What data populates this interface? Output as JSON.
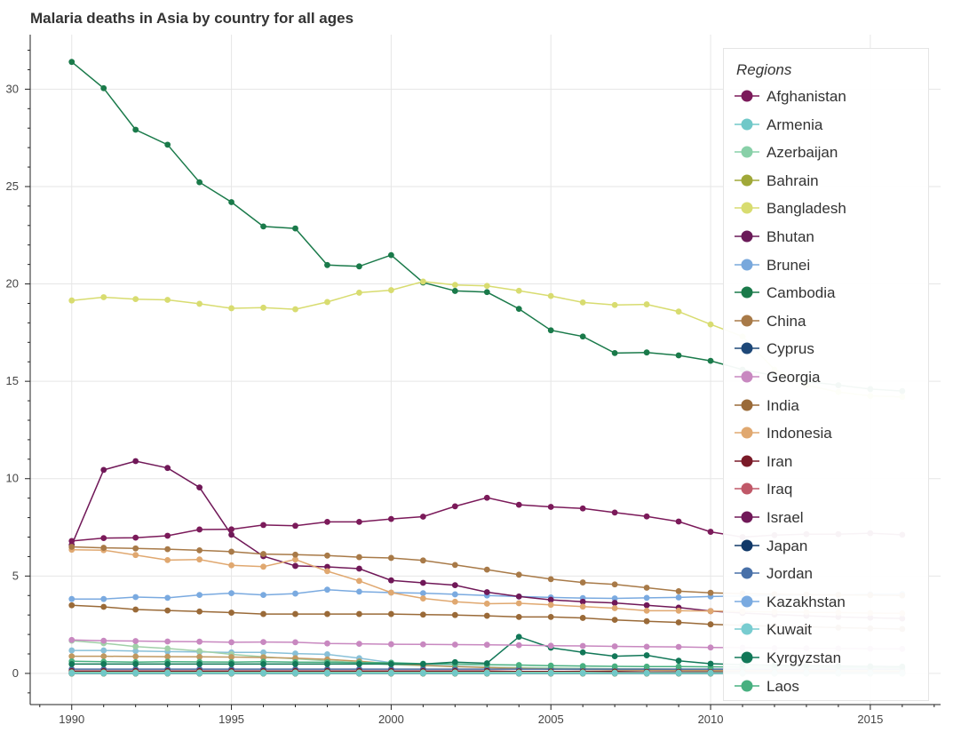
{
  "chart_data": {
    "type": "line",
    "title": "Malaria deaths in Asia by country for all ages",
    "xlabel": "",
    "ylabel": "",
    "xlim": [
      1988.7,
      2017.2
    ],
    "ylim": [
      -1.6,
      32.8
    ],
    "x_ticks": [
      1990,
      1995,
      2000,
      2005,
      2010,
      2015
    ],
    "y_ticks": [
      0,
      5,
      10,
      15,
      20,
      25,
      30
    ],
    "grid": true,
    "legend_title": "Regions",
    "legend_position": "right",
    "x": [
      1990,
      1991,
      1992,
      1993,
      1994,
      1995,
      1996,
      1997,
      1998,
      1999,
      2000,
      2001,
      2002,
      2003,
      2004,
      2005,
      2006,
      2007,
      2008,
      2009,
      2010,
      2011,
      2012,
      2013,
      2014,
      2015,
      2016
    ],
    "series": [
      {
        "name": "Afghanistan",
        "color": "#7b1a5a",
        "values": [
          6.8,
          6.95,
          6.97,
          7.07,
          7.39,
          7.4,
          7.62,
          7.58,
          7.78,
          7.78,
          7.93,
          8.05,
          8.58,
          9.02,
          8.66,
          8.55,
          8.47,
          8.26,
          8.06,
          7.8,
          7.27,
          7.0,
          7.1,
          7.15,
          7.15,
          7.2,
          7.12
        ]
      },
      {
        "name": "Armenia",
        "color": "#70c8c8",
        "values": [
          0.01,
          0.01,
          0.01,
          0.01,
          0.01,
          0.01,
          0.01,
          0.01,
          0.01,
          0.01,
          0.01,
          0.01,
          0.01,
          0.01,
          0.01,
          0.01,
          0.01,
          0.01,
          0.01,
          0.01,
          0.01,
          0.01,
          0.01,
          0.01,
          0.01,
          0.01,
          0.01
        ]
      },
      {
        "name": "Azerbaijan",
        "color": "#88d0a8",
        "values": [
          0.05,
          0.05,
          0.05,
          0.05,
          0.05,
          0.05,
          0.05,
          0.05,
          0.05,
          0.05,
          0.05,
          0.05,
          0.05,
          0.05,
          0.05,
          0.05,
          0.05,
          0.04,
          0.04,
          0.04,
          0.04,
          0.04,
          0.04,
          0.04,
          0.04,
          0.04,
          0.04
        ]
      },
      {
        "name": "Bahrain",
        "color": "#a0a838",
        "values": [
          0.0,
          0.0,
          0.0,
          0.0,
          0.0,
          0.0,
          0.0,
          0.0,
          0.0,
          0.0,
          0.0,
          0.0,
          0.0,
          0.0,
          0.0,
          0.0,
          0.0,
          0.0,
          0.0,
          0.0,
          0.0,
          0.0,
          0.0,
          0.0,
          0.0,
          0.0,
          0.0
        ]
      },
      {
        "name": "Bangladesh",
        "color": "#d8dc70",
        "values": [
          19.15,
          19.32,
          19.22,
          19.18,
          18.98,
          18.75,
          18.78,
          18.7,
          19.07,
          19.55,
          19.68,
          20.12,
          19.95,
          19.9,
          19.65,
          19.38,
          19.05,
          18.92,
          18.95,
          18.58,
          17.92,
          17.3,
          15.6,
          14.8,
          14.45,
          14.25,
          14.2
        ]
      },
      {
        "name": "Bhutan",
        "color": "#6a1a58",
        "values": [
          0.02,
          0.02,
          0.02,
          0.02,
          0.02,
          0.02,
          0.02,
          0.02,
          0.02,
          0.02,
          0.02,
          0.02,
          0.02,
          0.02,
          0.02,
          0.02,
          0.02,
          0.02,
          0.02,
          0.02,
          0.02,
          0.02,
          0.02,
          0.02,
          0.02,
          0.02,
          0.02
        ]
      },
      {
        "name": "Brunei",
        "color": "#78a8dc",
        "values": [
          0.0,
          0.0,
          0.0,
          0.0,
          0.0,
          0.0,
          0.0,
          0.0,
          0.0,
          0.0,
          0.0,
          0.0,
          0.0,
          0.0,
          0.0,
          0.0,
          0.0,
          0.0,
          0.0,
          0.0,
          0.0,
          0.0,
          0.0,
          0.0,
          0.0,
          0.0,
          0.0
        ]
      },
      {
        "name": "Cambodia",
        "color": "#1a7a4a",
        "values": [
          31.4,
          30.05,
          27.92,
          27.15,
          25.22,
          24.2,
          22.95,
          22.85,
          20.97,
          20.9,
          21.48,
          20.07,
          19.64,
          19.58,
          18.72,
          17.62,
          17.3,
          16.45,
          16.48,
          16.33,
          16.05,
          15.6,
          15.3,
          15.0,
          14.8,
          14.6,
          14.5
        ]
      },
      {
        "name": "China",
        "color": "#a87a48",
        "values": [
          6.5,
          6.45,
          6.42,
          6.38,
          6.32,
          6.25,
          6.13,
          6.1,
          6.05,
          5.97,
          5.93,
          5.8,
          5.57,
          5.33,
          5.07,
          4.84,
          4.67,
          4.57,
          4.4,
          4.22,
          4.14,
          4.1,
          4.07,
          4.05,
          4.03,
          4.02,
          4.0
        ]
      },
      {
        "name": "Cyprus",
        "color": "#1e4878",
        "values": [
          0.0,
          0.0,
          0.0,
          0.0,
          0.0,
          0.0,
          0.0,
          0.0,
          0.0,
          0.0,
          0.0,
          0.0,
          0.0,
          0.0,
          0.0,
          0.0,
          0.0,
          0.0,
          0.0,
          0.0,
          0.0,
          0.0,
          0.0,
          0.0,
          0.0,
          0.0,
          0.0
        ]
      },
      {
        "name": "Georgia",
        "color": "#c888c0",
        "values": [
          1.72,
          1.68,
          1.66,
          1.64,
          1.63,
          1.6,
          1.61,
          1.6,
          1.54,
          1.52,
          1.5,
          1.49,
          1.48,
          1.47,
          1.45,
          1.42,
          1.41,
          1.39,
          1.37,
          1.36,
          1.33,
          1.32,
          1.3,
          1.29,
          1.28,
          1.27,
          1.26
        ]
      },
      {
        "name": "India",
        "color": "#9a6a38",
        "values": [
          3.5,
          3.42,
          3.28,
          3.23,
          3.18,
          3.12,
          3.05,
          3.05,
          3.05,
          3.05,
          3.05,
          3.02,
          3.0,
          2.96,
          2.9,
          2.9,
          2.85,
          2.75,
          2.68,
          2.62,
          2.52,
          2.47,
          2.43,
          2.39,
          2.35,
          2.31,
          2.28
        ]
      },
      {
        "name": "Indonesia",
        "color": "#e0a870",
        "values": [
          6.35,
          6.33,
          6.08,
          5.82,
          5.85,
          5.55,
          5.48,
          5.85,
          5.25,
          4.75,
          4.15,
          3.85,
          3.68,
          3.58,
          3.6,
          3.52,
          3.43,
          3.35,
          3.22,
          3.22,
          3.2,
          3.18,
          3.16,
          3.14,
          3.12,
          3.1,
          3.08
        ]
      },
      {
        "name": "Iran",
        "color": "#7a1a28",
        "values": [
          0.12,
          0.12,
          0.12,
          0.12,
          0.12,
          0.12,
          0.12,
          0.12,
          0.12,
          0.12,
          0.12,
          0.12,
          0.12,
          0.12,
          0.1,
          0.1,
          0.1,
          0.1,
          0.08,
          0.08,
          0.07,
          0.07,
          0.06,
          0.06,
          0.05,
          0.05,
          0.05
        ]
      },
      {
        "name": "Iraq",
        "color": "#c05868",
        "values": [
          0.08,
          0.08,
          0.08,
          0.08,
          0.08,
          0.08,
          0.08,
          0.08,
          0.08,
          0.08,
          0.08,
          0.08,
          0.08,
          0.08,
          0.07,
          0.07,
          0.07,
          0.07,
          0.06,
          0.06,
          0.06,
          0.05,
          0.05,
          0.05,
          0.05,
          0.05,
          0.05
        ]
      },
      {
        "name": "Israel",
        "color": "#701858",
        "values": [
          6.6,
          10.45,
          10.9,
          10.55,
          9.55,
          7.12,
          6.02,
          5.52,
          5.47,
          5.38,
          4.78,
          4.65,
          4.53,
          4.17,
          3.95,
          3.78,
          3.68,
          3.62,
          3.5,
          3.38,
          3.2,
          3.1,
          3.02,
          2.96,
          2.9,
          2.86,
          2.82
        ]
      },
      {
        "name": "Japan",
        "color": "#103868",
        "values": [
          0.0,
          0.0,
          0.0,
          0.0,
          0.0,
          0.0,
          0.0,
          0.0,
          0.0,
          0.0,
          0.0,
          0.0,
          0.0,
          0.0,
          0.0,
          0.0,
          0.0,
          0.0,
          0.0,
          0.0,
          0.0,
          0.0,
          0.0,
          0.0,
          0.0,
          0.0,
          0.0
        ]
      },
      {
        "name": "Jordan",
        "color": "#4870a8",
        "values": [
          0.0,
          0.0,
          0.0,
          0.0,
          0.0,
          0.0,
          0.0,
          0.0,
          0.0,
          0.0,
          0.0,
          0.0,
          0.0,
          0.0,
          0.0,
          0.0,
          0.0,
          0.0,
          0.0,
          0.0,
          0.0,
          0.0,
          0.0,
          0.0,
          0.0,
          0.0,
          0.0
        ]
      },
      {
        "name": "Kazakhstan",
        "color": "#7aaae0",
        "values": [
          3.82,
          3.82,
          3.92,
          3.88,
          4.03,
          4.12,
          4.03,
          4.1,
          4.3,
          4.2,
          4.15,
          4.12,
          4.06,
          4.0,
          3.95,
          3.9,
          3.87,
          3.85,
          3.88,
          3.9,
          3.95,
          3.98,
          4.0,
          4.02,
          4.04,
          4.06,
          4.08
        ]
      },
      {
        "name": "Kuwait",
        "color": "#78ccd0",
        "values": [
          0.0,
          0.0,
          0.0,
          0.0,
          0.0,
          0.0,
          0.0,
          0.0,
          0.0,
          0.0,
          0.0,
          0.0,
          0.0,
          0.0,
          0.0,
          0.0,
          0.0,
          0.0,
          0.0,
          0.0,
          0.0,
          0.0,
          0.0,
          0.0,
          0.0,
          0.0,
          0.0
        ]
      },
      {
        "name": "Kyrgyzstan",
        "color": "#127858",
        "values": [
          0.48,
          0.48,
          0.48,
          0.48,
          0.48,
          0.48,
          0.48,
          0.48,
          0.48,
          0.48,
          0.48,
          0.48,
          0.58,
          0.52,
          1.88,
          1.32,
          1.08,
          0.88,
          0.93,
          0.65,
          0.5,
          0.45,
          0.42,
          0.4,
          0.38,
          0.36,
          0.35
        ]
      },
      {
        "name": "Laos",
        "color": "#48b080",
        "values": [
          0.62,
          0.6,
          0.58,
          0.6,
          0.59,
          0.58,
          0.6,
          0.58,
          0.57,
          0.56,
          0.55,
          0.5,
          0.48,
          0.45,
          0.43,
          0.4,
          0.38,
          0.36,
          0.35,
          0.35,
          0.34,
          0.33,
          0.32,
          0.31,
          0.3,
          0.3,
          0.29
        ]
      }
    ],
    "extra_series": [
      {
        "color": "#88c0d8",
        "values": [
          1.18,
          1.18,
          1.15,
          1.12,
          1.1,
          1.08,
          1.08,
          1.02,
          0.98,
          0.78,
          0.55,
          0.45,
          0.38,
          0.32,
          0.28,
          0.22,
          0.2,
          0.18,
          0.17,
          0.16,
          0.15,
          0.15,
          0.14,
          0.14,
          0.13,
          0.13,
          0.12
        ]
      },
      {
        "color": "#a0d0a8",
        "values": [
          1.68,
          1.55,
          1.38,
          1.28,
          1.15,
          0.98,
          0.85,
          0.75,
          0.65,
          0.55,
          0.45,
          0.4,
          0.35,
          0.32,
          0.3,
          0.28,
          0.26,
          0.24,
          0.23,
          0.22,
          0.21,
          0.2,
          0.2,
          0.19,
          0.19,
          0.18,
          0.18
        ]
      },
      {
        "color": "#c09860",
        "values": [
          0.88,
          0.88,
          0.87,
          0.86,
          0.85,
          0.84,
          0.82,
          0.78,
          0.72,
          0.62,
          0.5,
          0.42,
          0.35,
          0.3,
          0.26,
          0.22,
          0.2,
          0.18,
          0.17,
          0.16,
          0.15,
          0.15,
          0.14,
          0.14,
          0.13,
          0.13,
          0.12
        ]
      },
      {
        "color": "#4a6aa0",
        "values": [
          0.22,
          0.22,
          0.22,
          0.22,
          0.22,
          0.22,
          0.22,
          0.22,
          0.22,
          0.22,
          0.22,
          0.22,
          0.22,
          0.22,
          0.22,
          0.22,
          0.22,
          0.22,
          0.22,
          0.22,
          0.22,
          0.22,
          0.22,
          0.22,
          0.22,
          0.22,
          0.22
        ]
      }
    ]
  }
}
